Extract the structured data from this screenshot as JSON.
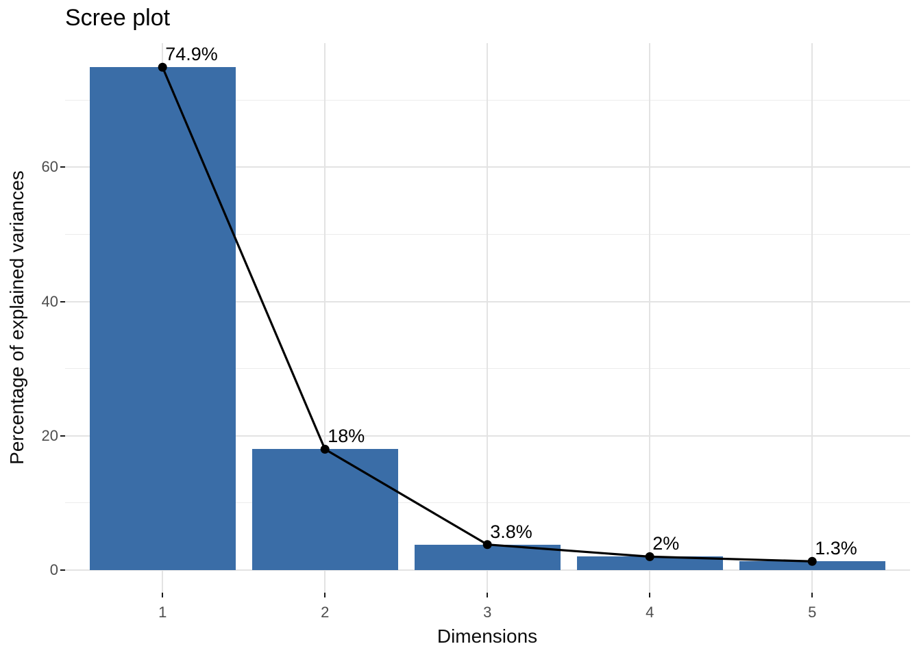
{
  "figure": {
    "background": "#FFFFFF"
  },
  "chart_data": {
    "type": "bar",
    "overlay": "line-with-points",
    "title": "Scree plot",
    "xlabel": "Dimensions",
    "ylabel": "Percentage of explained variances",
    "categories": [
      "1",
      "2",
      "3",
      "4",
      "5"
    ],
    "values": [
      74.9,
      18,
      3.8,
      2,
      1.3
    ],
    "value_labels": [
      "74.9%",
      "18%",
      "3.8%",
      "2%",
      "1.3%"
    ],
    "y_axis": {
      "tick_values": [
        0,
        20,
        40,
        60
      ],
      "tick_labels": [
        "0",
        "20",
        "40",
        "60"
      ],
      "minor_gridline_values": [
        10,
        30,
        50,
        70
      ],
      "range": [
        -3.4,
        78.5
      ]
    },
    "grid": true,
    "legend": "none",
    "colors": {
      "bar_fill": "#3A6DA7",
      "line": "#000000",
      "point": "#000000",
      "grid_major": "#E3E3E3",
      "grid_minor": "#ECECEC",
      "tick_mark": "#1A1A1A",
      "tick_label": "#4D4D4D",
      "title_text": "#000000",
      "axis_title_text": "#0D0D0D",
      "value_label_text": "#000000"
    }
  }
}
